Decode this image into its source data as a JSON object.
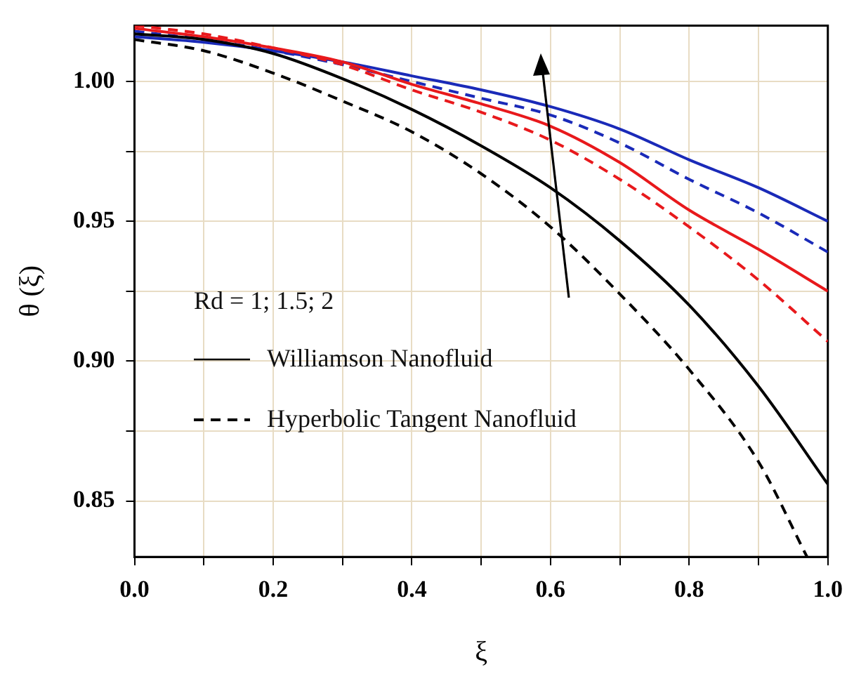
{
  "chart_data": {
    "type": "line",
    "xlabel": "ξ",
    "ylabel": "θ (ξ)",
    "legend_title": "Rd = 1; 1.5; 2",
    "legend": "left",
    "grid": true,
    "marker": "none",
    "x": [
      0,
      0.1,
      0.2,
      0.3,
      0.4,
      0.5,
      0.6,
      0.7,
      0.8,
      0.9,
      1
    ],
    "xlim": [
      0,
      1
    ],
    "xticks": [
      {
        "value": 0,
        "label": "0.0"
      },
      {
        "value": 0.1,
        "label": null
      },
      0.2,
      {
        "value": 0.3,
        "label": null
      },
      0.4,
      {
        "value": 0.5,
        "label": null
      },
      0.6,
      {
        "value": 0.7,
        "label": null
      },
      0.8,
      {
        "value": 0.9,
        "label": null
      },
      {
        "value": 1,
        "label": "1.0"
      }
    ],
    "ylim": [
      0.83,
      1.02
    ],
    "yticks": [
      0.85,
      {
        "value": 0.875,
        "label": null
      },
      {
        "value": 0.9,
        "label": "0.90"
      },
      {
        "value": 0.925,
        "label": null
      },
      0.95,
      {
        "value": 0.975,
        "label": null
      },
      {
        "value": 1,
        "label": "1.00"
      }
    ],
    "series": [
      {
        "name": "Williamson Nanofluid",
        "color": "#000000",
        "line_style": "solid",
        "values": [
          1.017,
          1.015,
          1.01,
          1.001,
          0.99,
          0.977,
          0.962,
          0.943,
          0.92,
          0.891,
          0.856
        ]
      },
      {
        "name": "Hyperbolic Tangent Nanofluid",
        "color": "#000000",
        "line_style": "dashed",
        "x": [
          0,
          0.1,
          0.2,
          0.3,
          0.4,
          0.5,
          0.6,
          0.7,
          0.8,
          0.9,
          0.97
        ],
        "values": [
          1.015,
          1.011,
          1.003,
          0.993,
          0.982,
          0.967,
          0.948,
          0.924,
          0.897,
          0.864,
          0.83
        ]
      },
      {
        "color": "#e8191c",
        "line_style": "solid",
        "values": [
          1.019,
          1.016,
          1.012,
          1.007,
          0.999,
          0.992,
          0.984,
          0.971,
          0.954,
          0.94,
          0.925
        ]
      },
      {
        "color": "#e8191c",
        "line_style": "dashed",
        "values": [
          1.02,
          1.017,
          1.012,
          1.006,
          0.997,
          0.989,
          0.979,
          0.965,
          0.948,
          0.929,
          0.907
        ]
      },
      {
        "color": "#1a2ab8",
        "line_style": "solid",
        "values": [
          1.016,
          1.014,
          1.011,
          1.007,
          1.002,
          0.997,
          0.991,
          0.983,
          0.972,
          0.962,
          0.95
        ]
      },
      {
        "color": "#1a2ab8",
        "line_style": "dashed",
        "values": [
          1.018,
          1.015,
          1.011,
          1.006,
          1,
          0.994,
          0.988,
          0.978,
          0.965,
          0.953,
          0.939
        ]
      }
    ]
  }
}
